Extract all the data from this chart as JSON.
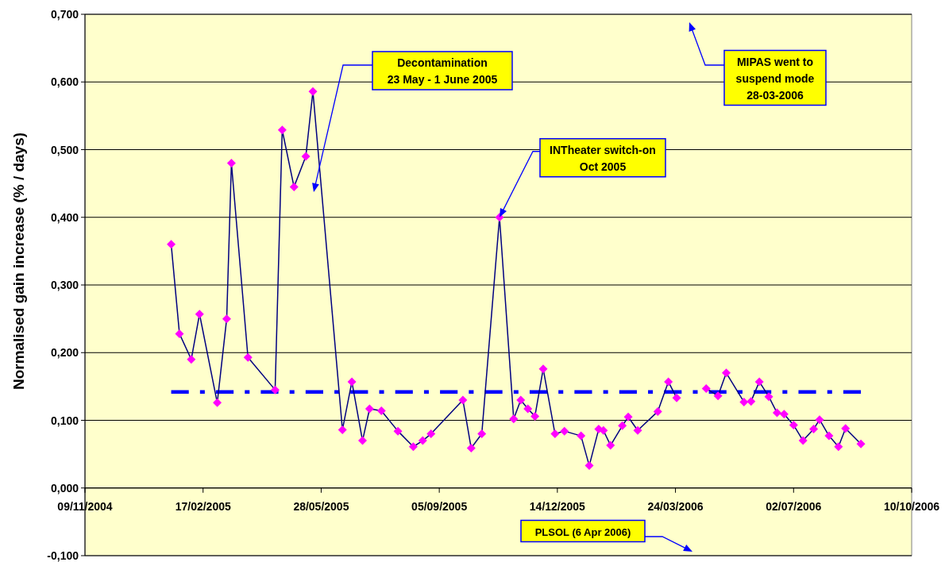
{
  "chart_data": {
    "type": "line",
    "ylabel": "Normalised gain increase (% / days)",
    "xlim": [
      "2004-11-09",
      "2006-10-10"
    ],
    "xticks": [
      {
        "value": "2004-11-09",
        "label": "09/11/2004"
      },
      {
        "value": "2005-02-17",
        "label": "17/02/2005"
      },
      {
        "value": "2005-05-28",
        "label": "28/05/2005"
      },
      {
        "value": "2005-09-05",
        "label": "05/09/2005"
      },
      {
        "value": "2005-12-14",
        "label": "14/12/2005"
      },
      {
        "value": "2006-03-24",
        "label": "24/03/2006"
      },
      {
        "value": "2006-07-02",
        "label": "02/07/2006"
      },
      {
        "value": "2006-10-10",
        "label": "10/10/2006"
      }
    ],
    "ylim": [
      -0.1,
      0.7
    ],
    "yticks": [
      {
        "value": -0.1,
        "label": "-0,100"
      },
      {
        "value": 0,
        "label": "0,000"
      },
      {
        "value": 0.1,
        "label": "0,100"
      },
      {
        "value": 0.2,
        "label": "0,200"
      },
      {
        "value": 0.3,
        "label": "0,300"
      },
      {
        "value": 0.4,
        "label": "0,400"
      },
      {
        "value": 0.5,
        "label": "0,500"
      },
      {
        "value": 0.6,
        "label": "0,600"
      },
      {
        "value": 0.7,
        "label": "0,700"
      }
    ],
    "grid": "y",
    "series": [
      {
        "color": "#ff00ff",
        "marker": "diamond",
        "line_style": "solid",
        "x": [
          "2005-01-21",
          "2005-01-28",
          "2005-02-07",
          "2005-02-14",
          "2005-03-01",
          "2005-03-09",
          "2005-03-13",
          "2005-03-27",
          "2005-04-19",
          "2005-04-25",
          "2005-05-05",
          "2005-05-15",
          "2005-05-21",
          "2005-06-15",
          "2005-06-23",
          "2005-07-02",
          "2005-07-08",
          "2005-07-18",
          "2005-08-01",
          "2005-08-14",
          "2005-08-22",
          "2005-08-29",
          "2005-09-25",
          "2005-10-02",
          "2005-10-11",
          "2005-10-26",
          "2005-11-07",
          "2005-11-13",
          "2005-11-19",
          "2005-11-25",
          "2005-12-02",
          "2005-12-12",
          "2005-12-20",
          "2006-01-03",
          "2006-01-10",
          "2006-01-18",
          "2006-01-22",
          "2006-01-28",
          "2006-02-07",
          "2006-02-12",
          "2006-02-20",
          "2006-03-09",
          "2006-03-18",
          "2006-03-25",
          "2006-03-28",
          "2006-04-10",
          "2006-04-19",
          "2006-04-29",
          "2006-05-06",
          "2006-05-21",
          "2006-05-27",
          "2006-06-03",
          "2006-06-11",
          "2006-06-18",
          "2006-06-24",
          "2006-07-02",
          "2006-07-10",
          "2006-07-19",
          "2006-07-24",
          "2006-08-01",
          "2006-08-09",
          "2006-08-15",
          "2006-08-28"
        ],
        "values": [
          0.36,
          0.228,
          0.19,
          0.257,
          0.126,
          0.25,
          0.48,
          0.193,
          0.145,
          0.529,
          0.445,
          0.49,
          0.586,
          0.086,
          0.157,
          0.07,
          0.117,
          0.114,
          0.084,
          0.061,
          0.07,
          0.08,
          0.13,
          0.059,
          0.08,
          0.4,
          0.102,
          0.13,
          0.117,
          0.106,
          0.176,
          0.08,
          0.084,
          0.077,
          0.033,
          0.087,
          0.085,
          0.063,
          0.092,
          0.105,
          0.085,
          0.113,
          0.157,
          0.133,
          null,
          null,
          0.147,
          0.136,
          0.17,
          0.127,
          0.128,
          0.157,
          0.135,
          0.111,
          0.109,
          0.093,
          0.07,
          0.087,
          0.101,
          0.077,
          0.061,
          0.088,
          0.065
        ]
      },
      {
        "color": "#0000ff",
        "marker": "none",
        "line_style": "dashed",
        "x": [
          "2005-01-21",
          "2006-08-28"
        ],
        "values": [
          0.142,
          0.142
        ]
      }
    ],
    "annotations": [
      "Decontamination\n23 May - 1 June 2005",
      {
        "text": "INTheater switch-on\nOct 2005",
        "x": "2005-10-26",
        "y": 0.4
      },
      "MIPAS went to\nsuspend mode\n28-03-2006",
      "PLSOL (6 Apr 2006)"
    ]
  }
}
